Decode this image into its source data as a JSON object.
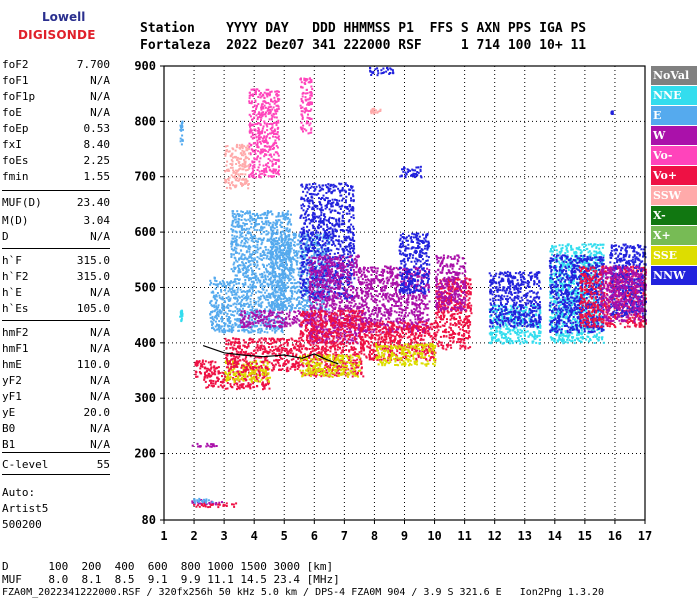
{
  "logo": {
    "top": "Lowell",
    "main": "DIGISONDE"
  },
  "header": {
    "line1": "Station    YYYY DAY   DDD HHMMSS P1  FFS S AXN PPS IGA PS",
    "line2": "Fortaleza  2022 Dez07 341 222000 RSF     1 714 100 10+ 11"
  },
  "params": [
    {
      "name": "foF2",
      "value": "7.700"
    },
    {
      "name": "foF1",
      "value": "N/A"
    },
    {
      "name": "foF1p",
      "value": "N/A"
    },
    {
      "name": "foE",
      "value": "N/A"
    },
    {
      "name": "foEp",
      "value": "0.53"
    },
    {
      "name": "fxI",
      "value": "8.40"
    },
    {
      "name": "foEs",
      "value": "2.25"
    },
    {
      "name": "fmin",
      "value": "1.55"
    },
    {
      "name": "MUF(D)",
      "value": "23.40"
    },
    {
      "name": "M(D)",
      "value": "3.04"
    },
    {
      "name": "D",
      "value": "N/A"
    },
    {
      "name": "h`F",
      "value": "315.0"
    },
    {
      "name": "h`F2",
      "value": "315.0"
    },
    {
      "name": "h`E",
      "value": "N/A"
    },
    {
      "name": "h`Es",
      "value": "105.0"
    },
    {
      "name": "hmF2",
      "value": "N/A"
    },
    {
      "name": "hmF1",
      "value": "N/A"
    },
    {
      "name": "hmE",
      "value": "110.0"
    },
    {
      "name": "yF2",
      "value": "N/A"
    },
    {
      "name": "yF1",
      "value": "N/A"
    },
    {
      "name": "yE",
      "value": "20.0"
    },
    {
      "name": "B0",
      "value": "N/A"
    },
    {
      "name": "B1",
      "value": "N/A"
    },
    {
      "name": "C-level",
      "value": "55"
    }
  ],
  "auto": {
    "label": "Auto:",
    "system": "Artist5",
    "version": "500200"
  },
  "legend": [
    {
      "label": "NoVal",
      "color": "#808080"
    },
    {
      "label": "NNE",
      "color": "#33ddee"
    },
    {
      "label": "E",
      "color": "#55aaee"
    },
    {
      "label": "W",
      "color": "#aa11aa"
    },
    {
      "label": "Vo-",
      "color": "#ff44bb"
    },
    {
      "label": "Vo+",
      "color": "#ee1144"
    },
    {
      "label": "SSW",
      "color": "#ffaaaa"
    },
    {
      "label": "X-",
      "color": "#117711"
    },
    {
      "label": "X+",
      "color": "#77bb55"
    },
    {
      "label": "SSE",
      "color": "#dddd00"
    },
    {
      "label": "NNW",
      "color": "#2222dd"
    }
  ],
  "footer": {
    "d_row": "D      100  200  400  600  800 1000 1500 3000 [km]",
    "muf_row": "MUF    8.0  8.1  8.5  9.1  9.9 11.1 14.5 23.4 [MHz]",
    "file_row": "FZA0M_2022341222000.RSF / 320fx256h 50 kHz 5.0 km / DPS-4 FZA0M 904 / 3.9 S 321.6 E   Ion2Png 1.3.20"
  },
  "chart_data": {
    "type": "scatter",
    "xlim": [
      1,
      17
    ],
    "ylim": [
      80,
      900
    ],
    "x_ticks": [
      1,
      2,
      3,
      4,
      5,
      6,
      7,
      8,
      9,
      10,
      11,
      12,
      13,
      14,
      15,
      16,
      17
    ],
    "y_ticks": [
      80,
      200,
      300,
      400,
      500,
      600,
      700,
      800,
      900
    ],
    "grid": true,
    "clusters": [
      {
        "series": "E",
        "x": [
          1.5,
          1.6
        ],
        "y": [
          760,
          810
        ]
      },
      {
        "series": "NNE",
        "x": [
          1.5,
          1.6
        ],
        "y": [
          440,
          460
        ]
      },
      {
        "series": "W",
        "x": [
          1.9,
          2.9
        ],
        "y": [
          110,
          118
        ]
      },
      {
        "series": "E",
        "x": [
          1.9,
          2.6
        ],
        "y": [
          112,
          120
        ]
      },
      {
        "series": "Vo+",
        "x": [
          1.9,
          3.4
        ],
        "y": [
          105,
          112
        ]
      },
      {
        "series": "W",
        "x": [
          1.9,
          2.8
        ],
        "y": [
          214,
          220
        ]
      },
      {
        "series": "Vo+",
        "x": [
          2.0,
          2.8
        ],
        "y": [
          340,
          370
        ]
      },
      {
        "series": "Vo+",
        "x": [
          2.3,
          4.5
        ],
        "y": [
          318,
          350
        ]
      },
      {
        "series": "SSE",
        "x": [
          3.0,
          4.5
        ],
        "y": [
          330,
          370
        ]
      },
      {
        "series": "Vo+",
        "x": [
          3.0,
          5.5
        ],
        "y": [
          350,
          410
        ]
      },
      {
        "series": "E",
        "x": [
          2.5,
          5.0
        ],
        "y": [
          420,
          520
        ]
      },
      {
        "series": "E",
        "x": [
          3.2,
          5.2
        ],
        "y": [
          520,
          640
        ]
      },
      {
        "series": "W",
        "x": [
          3.5,
          6.0
        ],
        "y": [
          430,
          460
        ]
      },
      {
        "series": "E",
        "x": [
          4.5,
          6.5
        ],
        "y": [
          460,
          600
        ]
      },
      {
        "series": "NNW",
        "x": [
          5.5,
          7.3
        ],
        "y": [
          480,
          690
        ]
      },
      {
        "series": "W",
        "x": [
          5.8,
          7.5
        ],
        "y": [
          400,
          560
        ]
      },
      {
        "series": "Vo+",
        "x": [
          5.5,
          7.6
        ],
        "y": [
          340,
          460
        ]
      },
      {
        "series": "SSE",
        "x": [
          5.5,
          7.5
        ],
        "y": [
          340,
          380
        ]
      },
      {
        "series": "Vo-",
        "x": [
          3.8,
          4.8
        ],
        "y": [
          700,
          860
        ]
      },
      {
        "series": "SSW",
        "x": [
          3.0,
          3.8
        ],
        "y": [
          680,
          760
        ]
      },
      {
        "series": "Vo-",
        "x": [
          5.5,
          5.9
        ],
        "y": [
          780,
          880
        ]
      },
      {
        "series": "W",
        "x": [
          7.5,
          9.8
        ],
        "y": [
          420,
          540
        ]
      },
      {
        "series": "Vo+",
        "x": [
          7.5,
          10.0
        ],
        "y": [
          370,
          440
        ]
      },
      {
        "series": "SSE",
        "x": [
          8.0,
          10.0
        ],
        "y": [
          360,
          400
        ]
      },
      {
        "series": "NNW",
        "x": [
          8.8,
          9.8
        ],
        "y": [
          490,
          600
        ]
      },
      {
        "series": "NNW",
        "x": [
          8.8,
          9.6
        ],
        "y": [
          700,
          720
        ]
      },
      {
        "series": "NNW",
        "x": [
          7.8,
          8.6
        ],
        "y": [
          885,
          900
        ]
      },
      {
        "series": "SSW",
        "x": [
          7.8,
          8.2
        ],
        "y": [
          815,
          825
        ]
      },
      {
        "series": "Vo+",
        "x": [
          10.0,
          11.2
        ],
        "y": [
          390,
          520
        ]
      },
      {
        "series": "W",
        "x": [
          10.0,
          11.0
        ],
        "y": [
          460,
          560
        ]
      },
      {
        "series": "NNE",
        "x": [
          11.8,
          13.5
        ],
        "y": [
          400,
          470
        ]
      },
      {
        "series": "NNW",
        "x": [
          11.8,
          13.5
        ],
        "y": [
          430,
          530
        ]
      },
      {
        "series": "NNE",
        "x": [
          13.8,
          15.6
        ],
        "y": [
          400,
          580
        ]
      },
      {
        "series": "NNW",
        "x": [
          13.8,
          15.6
        ],
        "y": [
          420,
          560
        ]
      },
      {
        "series": "Vo+",
        "x": [
          14.8,
          17.0
        ],
        "y": [
          430,
          540
        ]
      },
      {
        "series": "NNW",
        "x": [
          15.8,
          17.0
        ],
        "y": [
          450,
          580
        ]
      },
      {
        "series": "W",
        "x": [
          15.5,
          17.0
        ],
        "y": [
          440,
          540
        ]
      },
      {
        "series": "NNW",
        "x": [
          15.85,
          15.9
        ],
        "y": [
          815,
          820
        ]
      }
    ],
    "trace": {
      "x": [
        2.3,
        3.0,
        3.6,
        4.3,
        5.0,
        5.6,
        6.0,
        6.4,
        6.8
      ],
      "y": [
        395,
        382,
        378,
        375,
        378,
        372,
        380,
        370,
        362
      ]
    }
  }
}
